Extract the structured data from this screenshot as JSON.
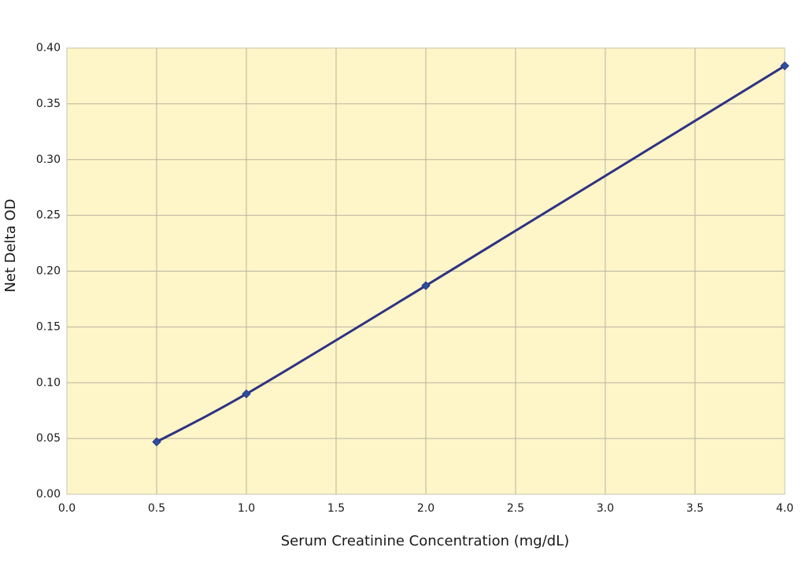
{
  "chart_data": {
    "type": "line",
    "x_label": "Serum Creatinine Concentration (mg/dL)",
    "y_label": "Net Delta OD",
    "x": [
      0.5,
      1.0,
      2.0,
      4.0
    ],
    "values": [
      0.047,
      0.09,
      0.187,
      0.384
    ],
    "color": "#2e3383",
    "marker_color": "#2a4fa0",
    "marker": "diamond",
    "smooth": true,
    "background": "#fef5c8",
    "grid": true,
    "xlim": [
      0,
      4
    ],
    "ylim": [
      0,
      0.4
    ],
    "xticks": [
      {
        "value": 0,
        "label": "0.0"
      },
      0.5,
      {
        "value": 1,
        "label": "1.0"
      },
      1.5,
      {
        "value": 2,
        "label": "2.0"
      },
      2.5,
      {
        "value": 3,
        "label": "3.0"
      },
      3.5,
      {
        "value": 4,
        "label": "4.0"
      }
    ],
    "yticks": [
      {
        "value": 0,
        "label": "0.00"
      },
      0.05,
      {
        "value": 0.1,
        "label": "0.10"
      },
      0.15,
      {
        "value": 0.2,
        "label": "0.20"
      },
      0.25,
      {
        "value": 0.3,
        "label": "0.30"
      },
      0.35,
      {
        "value": 0.4,
        "label": "0.40"
      }
    ]
  }
}
